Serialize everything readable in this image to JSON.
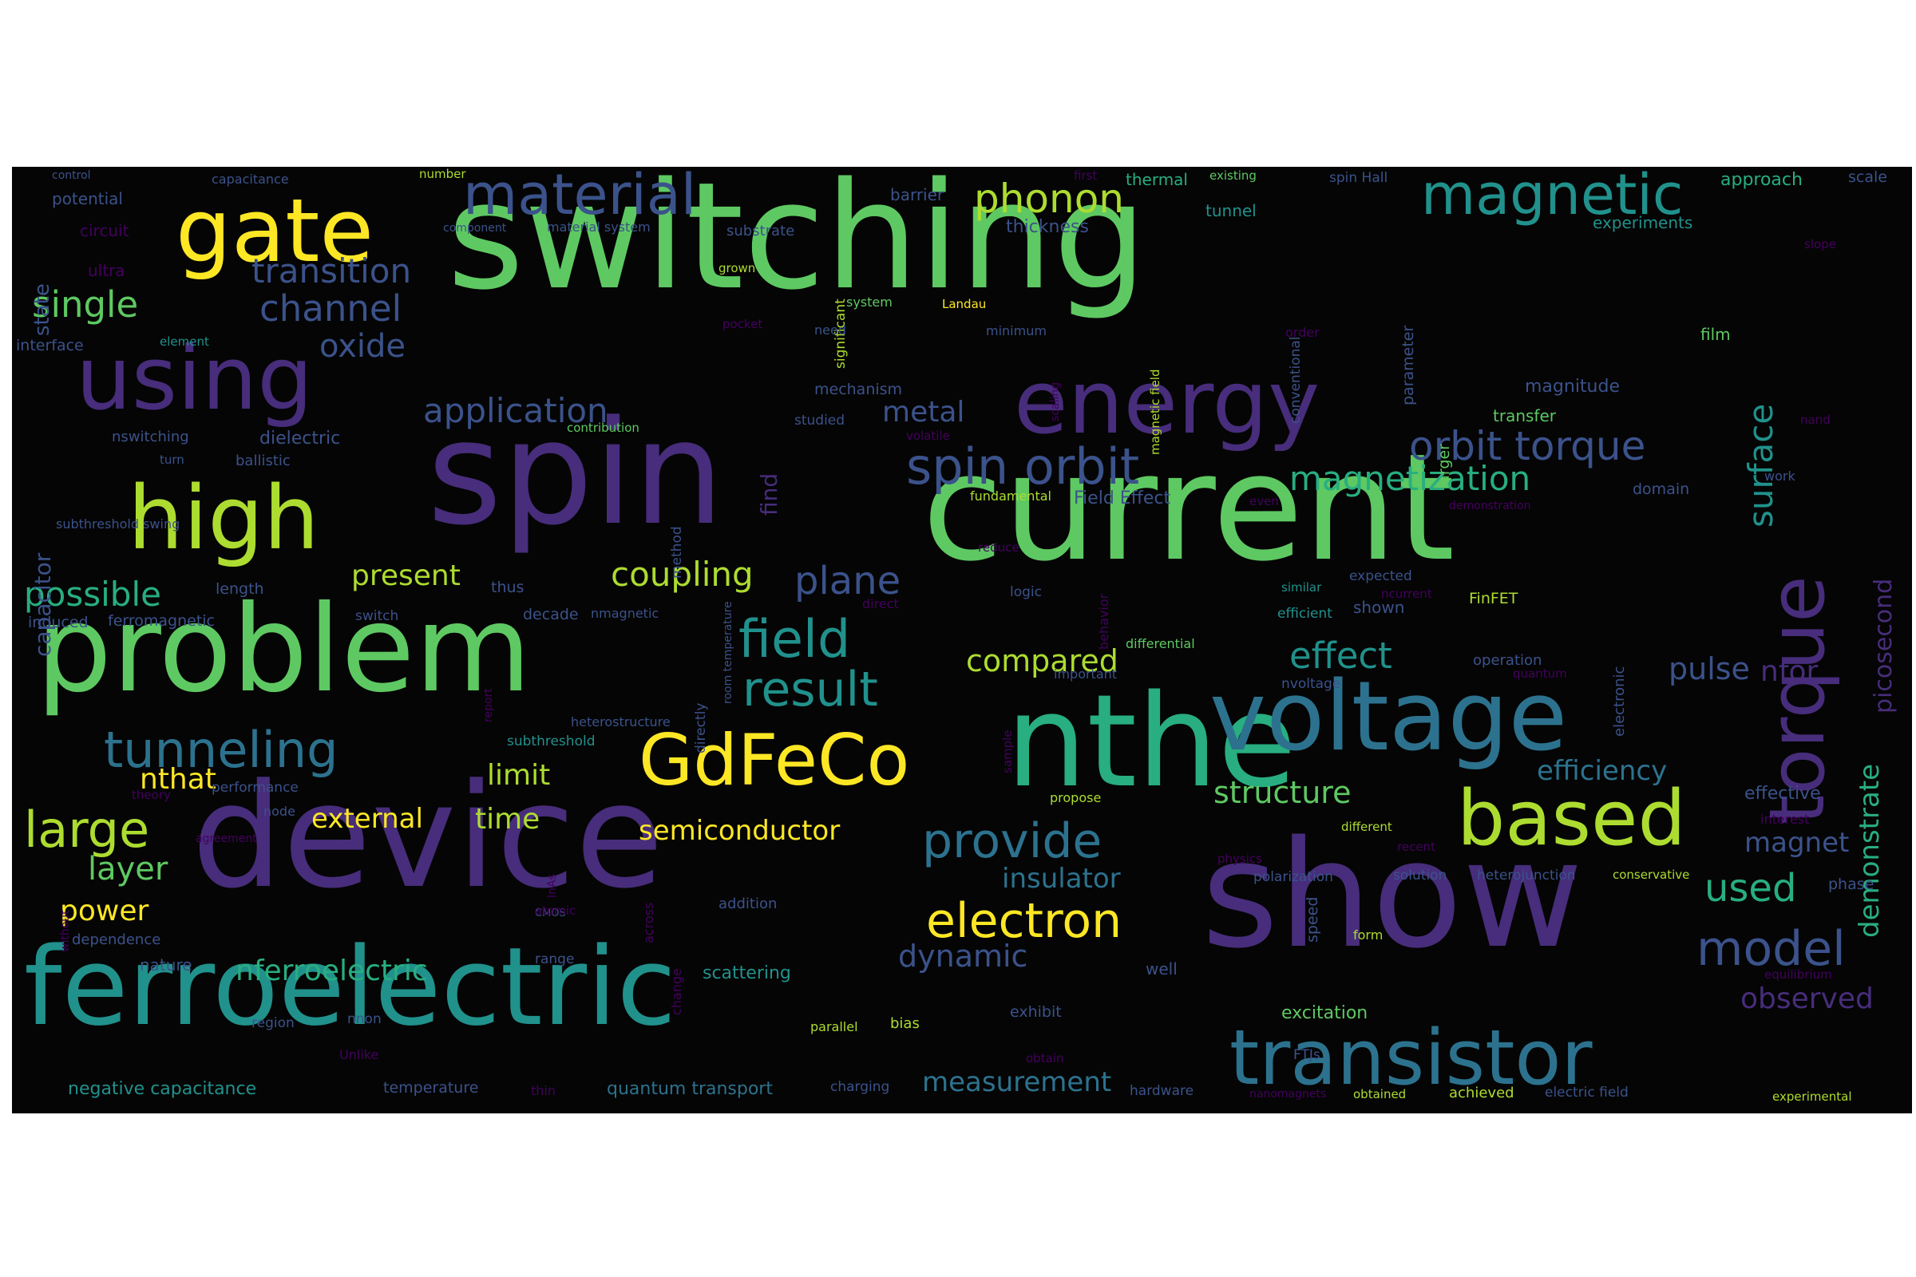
{
  "palette": {
    "purple": "#472d7b",
    "indigo": "#3b528b",
    "blue": "#2c728e",
    "teal": "#21918c",
    "green": "#28ae80",
    "light_green": "#5ec962",
    "lime": "#addc30",
    "yellow": "#fde725",
    "dark": "#44015f"
  },
  "words": [
    {
      "text": "switching"
    },
    {
      "text": "spin"
    },
    {
      "text": "current"
    },
    {
      "text": "device"
    },
    {
      "text": "show"
    },
    {
      "text": "problem"
    },
    {
      "text": "ferroelectric"
    },
    {
      "text": "nthe"
    },
    {
      "text": "voltage"
    },
    {
      "text": "gate"
    },
    {
      "text": "using"
    },
    {
      "text": "high"
    },
    {
      "text": "energy"
    },
    {
      "text": "GdFeCo"
    },
    {
      "text": "based"
    },
    {
      "text": "transistor"
    },
    {
      "text": "torque"
    },
    {
      "text": "magnetic"
    },
    {
      "text": "material"
    },
    {
      "text": "spin orbit"
    },
    {
      "text": "orbit torque"
    },
    {
      "text": "tunneling"
    },
    {
      "text": "field"
    },
    {
      "text": "result"
    },
    {
      "text": "large"
    },
    {
      "text": "model"
    },
    {
      "text": "provide"
    },
    {
      "text": "electron"
    },
    {
      "text": "phonon"
    },
    {
      "text": "single"
    },
    {
      "text": "channel"
    },
    {
      "text": "transition"
    },
    {
      "text": "surface"
    },
    {
      "text": "magnetization"
    },
    {
      "text": "plane"
    },
    {
      "text": "possible"
    },
    {
      "text": "application"
    },
    {
      "text": "coupling"
    },
    {
      "text": "effect"
    },
    {
      "text": "demonstrate"
    },
    {
      "text": "picosecond"
    },
    {
      "text": "oxide"
    },
    {
      "text": "metal"
    },
    {
      "text": "compared"
    },
    {
      "text": "pulse"
    },
    {
      "text": "nfor"
    },
    {
      "text": "used"
    },
    {
      "text": "efficiency"
    },
    {
      "text": "structure"
    },
    {
      "text": "semiconductor"
    },
    {
      "text": "insulator"
    },
    {
      "text": "dynamic"
    },
    {
      "text": "layer"
    },
    {
      "text": "power"
    },
    {
      "text": "nthat"
    },
    {
      "text": "limit"
    },
    {
      "text": "external"
    },
    {
      "text": "time"
    },
    {
      "text": "present"
    },
    {
      "text": "nferroelectric"
    },
    {
      "text": "measurement"
    },
    {
      "text": "observed"
    },
    {
      "text": "magnet"
    },
    {
      "text": "capacitor"
    },
    {
      "text": "state"
    },
    {
      "text": "find"
    },
    {
      "text": "effective"
    },
    {
      "text": "negative capacitance"
    },
    {
      "text": "quantum transport"
    },
    {
      "text": "scattering"
    },
    {
      "text": "excitation"
    },
    {
      "text": "potential"
    },
    {
      "text": "circuit"
    },
    {
      "text": "ultra"
    },
    {
      "text": "interface"
    },
    {
      "text": "element"
    },
    {
      "text": "control"
    },
    {
      "text": "capacitance"
    },
    {
      "text": "number"
    },
    {
      "text": "component"
    },
    {
      "text": "material system"
    },
    {
      "text": "substrate"
    },
    {
      "text": "significant"
    },
    {
      "text": "barrier"
    },
    {
      "text": "thickness"
    },
    {
      "text": "thermal"
    },
    {
      "text": "first"
    },
    {
      "text": "existing"
    },
    {
      "text": "tunnel"
    },
    {
      "text": "conventional"
    },
    {
      "text": "spin Hall"
    },
    {
      "text": "approach"
    },
    {
      "text": "scale"
    },
    {
      "text": "experiments"
    },
    {
      "text": "slope"
    },
    {
      "text": "parameter"
    },
    {
      "text": "order"
    },
    {
      "text": "grown"
    },
    {
      "text": "system"
    },
    {
      "text": "Landau"
    },
    {
      "text": "minimum"
    },
    {
      "text": "magnetic field"
    },
    {
      "text": "scaling"
    },
    {
      "text": "pocket"
    },
    {
      "text": "need"
    },
    {
      "text": "film"
    },
    {
      "text": "magnitude"
    },
    {
      "text": "larger"
    },
    {
      "text": "transfer"
    },
    {
      "text": "mechanism"
    },
    {
      "text": "studied"
    },
    {
      "text": "contribution"
    },
    {
      "text": "nswitching"
    },
    {
      "text": "dielectric"
    },
    {
      "text": "volatile"
    },
    {
      "text": "turn"
    },
    {
      "text": "ballistic"
    },
    {
      "text": "fundamental"
    },
    {
      "text": "Field Effect"
    },
    {
      "text": "even"
    },
    {
      "text": "demonstration"
    },
    {
      "text": "domain"
    },
    {
      "text": "work"
    },
    {
      "text": "nand"
    },
    {
      "text": "subthreshold swing"
    },
    {
      "text": "method"
    },
    {
      "text": "behavior"
    },
    {
      "text": "reduce"
    },
    {
      "text": "length"
    },
    {
      "text": "thus"
    },
    {
      "text": "similar"
    },
    {
      "text": "expected"
    },
    {
      "text": "logic"
    },
    {
      "text": "shown"
    },
    {
      "text": "FinFET"
    },
    {
      "text": "induced"
    },
    {
      "text": "ferromagnetic"
    },
    {
      "text": "decade"
    },
    {
      "text": "nmagnetic"
    },
    {
      "text": "room temperature"
    },
    {
      "text": "direct"
    },
    {
      "text": "efficient"
    },
    {
      "text": "switch"
    },
    {
      "text": "directly"
    },
    {
      "text": "differential"
    },
    {
      "text": "electronic"
    },
    {
      "text": "report"
    },
    {
      "text": "important"
    },
    {
      "text": "nvoltage"
    },
    {
      "text": "ncurrent"
    },
    {
      "text": "operation"
    },
    {
      "text": "quantum"
    },
    {
      "text": "heterostructure"
    },
    {
      "text": "sample"
    },
    {
      "text": "subthreshold"
    },
    {
      "text": "theory"
    },
    {
      "text": "performance"
    },
    {
      "text": "propose"
    },
    {
      "text": "interest"
    },
    {
      "text": "node"
    },
    {
      "text": "agreement"
    },
    {
      "text": "different"
    },
    {
      "text": "physics"
    },
    {
      "text": "recent"
    },
    {
      "text": "polarization"
    },
    {
      "text": "solution"
    },
    {
      "text": "heterojunction"
    },
    {
      "text": "conservative"
    },
    {
      "text": "phase"
    },
    {
      "text": "without"
    },
    {
      "text": "InAs"
    },
    {
      "text": "CMOS"
    },
    {
      "text": "atomic"
    },
    {
      "text": "addition"
    },
    {
      "text": "across"
    },
    {
      "text": "speed"
    },
    {
      "text": "dependence"
    },
    {
      "text": "change"
    },
    {
      "text": "form"
    },
    {
      "text": "nature"
    },
    {
      "text": "range"
    },
    {
      "text": "well"
    },
    {
      "text": "equilibrium"
    },
    {
      "text": "exhibit"
    },
    {
      "text": "region"
    },
    {
      "text": "nnon"
    },
    {
      "text": "parallel"
    },
    {
      "text": "bias"
    },
    {
      "text": "Unlike"
    },
    {
      "text": "obtain"
    },
    {
      "text": "FTJs"
    },
    {
      "text": "temperature"
    },
    {
      "text": "thin"
    },
    {
      "text": "charging"
    },
    {
      "text": "hardware"
    },
    {
      "text": "nanomagnets"
    },
    {
      "text": "obtained"
    },
    {
      "text": "achieved"
    },
    {
      "text": "electric field"
    },
    {
      "text": "experimental"
    }
  ]
}
